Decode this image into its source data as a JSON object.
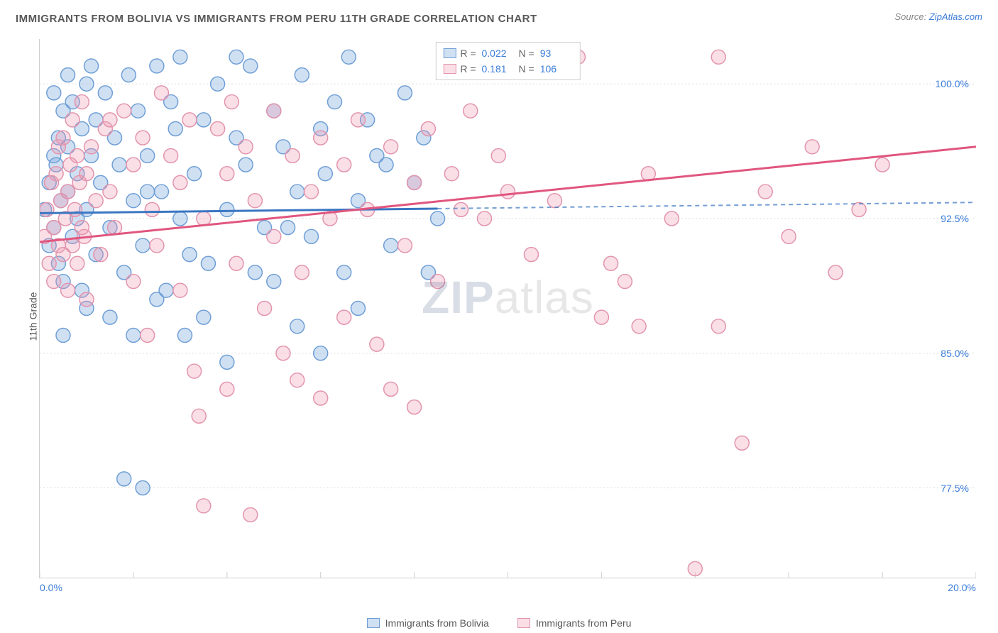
{
  "title": "IMMIGRANTS FROM BOLIVIA VS IMMIGRANTS FROM PERU 11TH GRADE CORRELATION CHART",
  "source": {
    "prefix": "Source: ",
    "link_text": "ZipAtlas.com"
  },
  "ylabel": "11th Grade",
  "watermark": {
    "bold": "ZIP",
    "rest": "atlas"
  },
  "chart": {
    "type": "scatter",
    "background_color": "#ffffff",
    "grid_color": "#d9d9d9",
    "border_color": "#cfcfcf",
    "xlim": [
      0,
      20
    ],
    "ylim": [
      72.5,
      102.5
    ],
    "xticks": [
      0,
      2,
      4,
      6,
      8,
      10,
      12,
      14,
      16,
      18,
      20
    ],
    "xtick_labels": {
      "min": "0.0%",
      "max": "20.0%"
    },
    "yticks": [
      77.5,
      85.0,
      92.5,
      100.0
    ],
    "ytick_labels": [
      "77.5%",
      "85.0%",
      "92.5%",
      "100.0%"
    ],
    "marker_radius": 10,
    "marker_stroke_width": 1.5,
    "line_width": 3,
    "series": [
      {
        "name": "Immigrants from Bolivia",
        "fill_color": "rgba(120,167,221,0.35)",
        "stroke_color": "#6f9fd6",
        "line_color": "#3a76c2",
        "R": "0.022",
        "N": "93",
        "trend": {
          "x1": 0,
          "y1": 92.8,
          "x2": 20,
          "y2": 93.4,
          "solid_until_x": 8.5
        },
        "points": [
          [
            0.1,
            93.0
          ],
          [
            0.2,
            94.5
          ],
          [
            0.2,
            91.0
          ],
          [
            0.3,
            96.0
          ],
          [
            0.3,
            92.0
          ],
          [
            0.35,
            95.5
          ],
          [
            0.4,
            90.0
          ],
          [
            0.4,
            97.0
          ],
          [
            0.45,
            93.5
          ],
          [
            0.5,
            98.5
          ],
          [
            0.5,
            89.0
          ],
          [
            0.6,
            94.0
          ],
          [
            0.6,
            96.5
          ],
          [
            0.7,
            91.5
          ],
          [
            0.7,
            99.0
          ],
          [
            0.8,
            95.0
          ],
          [
            0.8,
            92.5
          ],
          [
            0.9,
            97.5
          ],
          [
            0.9,
            88.5
          ],
          [
            1.0,
            93.0
          ],
          [
            1.0,
            100.0
          ],
          [
            1.1,
            96.0
          ],
          [
            1.2,
            90.5
          ],
          [
            1.2,
            98.0
          ],
          [
            1.3,
            94.5
          ],
          [
            1.4,
            99.5
          ],
          [
            1.5,
            92.0
          ],
          [
            1.5,
            87.0
          ],
          [
            1.6,
            97.0
          ],
          [
            1.7,
            95.5
          ],
          [
            1.8,
            89.5
          ],
          [
            1.9,
            100.5
          ],
          [
            2.0,
            93.5
          ],
          [
            2.1,
            98.5
          ],
          [
            2.2,
            91.0
          ],
          [
            2.3,
            96.0
          ],
          [
            2.5,
            101.0
          ],
          [
            2.5,
            88.0
          ],
          [
            2.6,
            94.0
          ],
          [
            2.8,
            99.0
          ],
          [
            2.9,
            97.5
          ],
          [
            3.0,
            92.5
          ],
          [
            3.0,
            101.5
          ],
          [
            3.1,
            86.0
          ],
          [
            3.3,
            95.0
          ],
          [
            3.5,
            98.0
          ],
          [
            3.6,
            90.0
          ],
          [
            3.8,
            100.0
          ],
          [
            4.0,
            93.0
          ],
          [
            4.0,
            84.5
          ],
          [
            4.2,
            97.0
          ],
          [
            4.4,
            95.5
          ],
          [
            4.5,
            101.0
          ],
          [
            4.8,
            92.0
          ],
          [
            5.0,
            98.5
          ],
          [
            5.0,
            89.0
          ],
          [
            5.2,
            96.5
          ],
          [
            5.5,
            94.0
          ],
          [
            5.6,
            100.5
          ],
          [
            5.8,
            91.5
          ],
          [
            6.0,
            97.5
          ],
          [
            6.1,
            95.0
          ],
          [
            6.3,
            99.0
          ],
          [
            6.5,
            89.5
          ],
          [
            6.6,
            101.5
          ],
          [
            6.8,
            93.5
          ],
          [
            7.0,
            98.0
          ],
          [
            7.2,
            96.0
          ],
          [
            7.5,
            91.0
          ],
          [
            7.8,
            99.5
          ],
          [
            8.0,
            94.5
          ],
          [
            8.2,
            97.0
          ],
          [
            8.5,
            92.5
          ],
          [
            1.8,
            78.0
          ],
          [
            2.2,
            77.5
          ],
          [
            0.5,
            86.0
          ],
          [
            1.0,
            87.5
          ],
          [
            2.0,
            86.0
          ],
          [
            3.5,
            87.0
          ],
          [
            5.5,
            86.5
          ],
          [
            6.0,
            85.0
          ],
          [
            6.8,
            87.5
          ],
          [
            0.3,
            99.5
          ],
          [
            0.6,
            100.5
          ],
          [
            1.1,
            101.0
          ],
          [
            2.3,
            94.0
          ],
          [
            3.2,
            90.5
          ],
          [
            4.6,
            89.5
          ],
          [
            5.3,
            92.0
          ],
          [
            7.4,
            95.5
          ],
          [
            8.3,
            89.5
          ],
          [
            4.2,
            101.5
          ],
          [
            2.7,
            88.5
          ]
        ]
      },
      {
        "name": "Immigrants from Peru",
        "fill_color": "rgba(240,150,175,0.30)",
        "stroke_color": "#e394ad",
        "line_color": "#e0567f",
        "R": "0.181",
        "N": "106",
        "trend": {
          "x1": 0,
          "y1": 91.2,
          "x2": 20,
          "y2": 96.5,
          "solid_until_x": 20
        },
        "points": [
          [
            0.1,
            91.5
          ],
          [
            0.15,
            93.0
          ],
          [
            0.2,
            90.0
          ],
          [
            0.25,
            94.5
          ],
          [
            0.3,
            92.0
          ],
          [
            0.3,
            89.0
          ],
          [
            0.35,
            95.0
          ],
          [
            0.4,
            91.0
          ],
          [
            0.4,
            96.5
          ],
          [
            0.45,
            93.5
          ],
          [
            0.5,
            90.5
          ],
          [
            0.5,
            97.0
          ],
          [
            0.55,
            92.5
          ],
          [
            0.6,
            94.0
          ],
          [
            0.6,
            88.5
          ],
          [
            0.65,
            95.5
          ],
          [
            0.7,
            91.0
          ],
          [
            0.7,
            98.0
          ],
          [
            0.75,
            93.0
          ],
          [
            0.8,
            90.0
          ],
          [
            0.8,
            96.0
          ],
          [
            0.85,
            94.5
          ],
          [
            0.9,
            92.0
          ],
          [
            0.9,
            99.0
          ],
          [
            0.95,
            91.5
          ],
          [
            1.0,
            95.0
          ],
          [
            1.0,
            88.0
          ],
          [
            1.1,
            96.5
          ],
          [
            1.2,
            93.5
          ],
          [
            1.3,
            90.5
          ],
          [
            1.4,
            97.5
          ],
          [
            1.5,
            94.0
          ],
          [
            1.6,
            92.0
          ],
          [
            1.8,
            98.5
          ],
          [
            2.0,
            95.5
          ],
          [
            2.0,
            89.0
          ],
          [
            2.2,
            97.0
          ],
          [
            2.4,
            93.0
          ],
          [
            2.5,
            91.0
          ],
          [
            2.6,
            99.5
          ],
          [
            2.8,
            96.0
          ],
          [
            3.0,
            88.5
          ],
          [
            3.0,
            94.5
          ],
          [
            3.2,
            98.0
          ],
          [
            3.3,
            84.0
          ],
          [
            3.5,
            92.5
          ],
          [
            3.5,
            76.5
          ],
          [
            3.8,
            97.5
          ],
          [
            4.0,
            95.0
          ],
          [
            4.0,
            83.0
          ],
          [
            4.2,
            90.0
          ],
          [
            4.4,
            96.5
          ],
          [
            4.5,
            76.0
          ],
          [
            4.6,
            93.5
          ],
          [
            4.8,
            87.5
          ],
          [
            5.0,
            98.5
          ],
          [
            5.0,
            91.5
          ],
          [
            5.2,
            85.0
          ],
          [
            5.4,
            96.0
          ],
          [
            5.5,
            83.5
          ],
          [
            5.6,
            89.5
          ],
          [
            5.8,
            94.0
          ],
          [
            6.0,
            97.0
          ],
          [
            6.0,
            82.5
          ],
          [
            6.2,
            92.5
          ],
          [
            6.5,
            95.5
          ],
          [
            6.5,
            87.0
          ],
          [
            6.8,
            98.0
          ],
          [
            7.0,
            93.0
          ],
          [
            7.2,
            85.5
          ],
          [
            7.5,
            96.5
          ],
          [
            7.5,
            83.0
          ],
          [
            7.8,
            91.0
          ],
          [
            8.0,
            94.5
          ],
          [
            8.0,
            82.0
          ],
          [
            8.3,
            97.5
          ],
          [
            8.5,
            89.0
          ],
          [
            8.8,
            95.0
          ],
          [
            9.0,
            93.0
          ],
          [
            9.2,
            98.5
          ],
          [
            9.5,
            92.5
          ],
          [
            9.8,
            96.0
          ],
          [
            10.0,
            94.0
          ],
          [
            10.5,
            90.5
          ],
          [
            11.0,
            93.5
          ],
          [
            11.5,
            101.5
          ],
          [
            12.0,
            87.0
          ],
          [
            12.2,
            90.0
          ],
          [
            12.5,
            89.0
          ],
          [
            12.8,
            86.5
          ],
          [
            13.0,
            95.0
          ],
          [
            13.5,
            92.5
          ],
          [
            14.0,
            73.0
          ],
          [
            14.5,
            86.5
          ],
          [
            14.5,
            101.5
          ],
          [
            15.0,
            80.0
          ],
          [
            15.5,
            94.0
          ],
          [
            16.0,
            91.5
          ],
          [
            16.5,
            96.5
          ],
          [
            17.0,
            89.5
          ],
          [
            17.5,
            93.0
          ],
          [
            18.0,
            95.5
          ],
          [
            1.5,
            98.0
          ],
          [
            2.3,
            86.0
          ],
          [
            3.4,
            81.5
          ],
          [
            4.1,
            99.0
          ]
        ]
      }
    ]
  },
  "legend_top": [
    {
      "swatch_fill": "rgba(120,167,221,0.35)",
      "swatch_stroke": "#6f9fd6",
      "R_label": "R =",
      "R_val": "0.022",
      "N_label": "N =",
      "N_val": "93"
    },
    {
      "swatch_fill": "rgba(240,150,175,0.30)",
      "swatch_stroke": "#e394ad",
      "R_label": "R =",
      "R_val": "0.181",
      "N_label": "N =",
      "N_val": "106"
    }
  ],
  "legend_bottom": [
    {
      "swatch_fill": "rgba(120,167,221,0.35)",
      "swatch_stroke": "#6f9fd6",
      "label": "Immigrants from Bolivia"
    },
    {
      "swatch_fill": "rgba(240,150,175,0.30)",
      "swatch_stroke": "#e394ad",
      "label": "Immigrants from Peru"
    }
  ]
}
